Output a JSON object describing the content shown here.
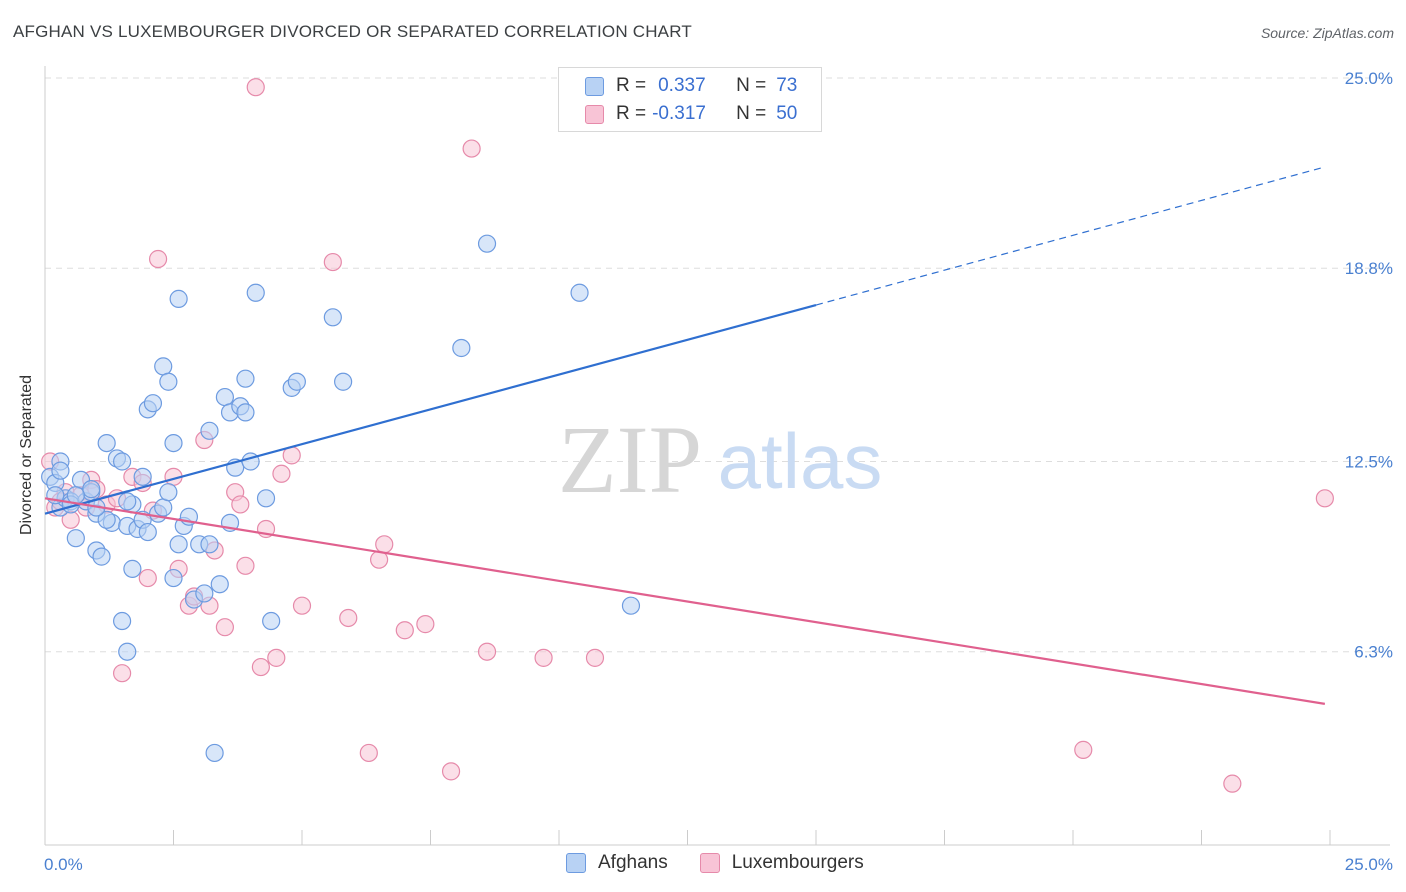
{
  "header": {
    "title": "AFGHAN VS LUXEMBOURGER DIVORCED OR SEPARATED CORRELATION CHART",
    "source": "Source: ZipAtlas.com"
  },
  "watermark": {
    "zip": "ZIP",
    "atlas": "atlas"
  },
  "legend": {
    "rows": [
      {
        "r_label": "R =",
        "r_value": "0.337",
        "n_label": "N =",
        "n_value": "73"
      },
      {
        "r_label": "R =",
        "r_value": "-0.317",
        "n_label": "N =",
        "n_value": "50"
      }
    ]
  },
  "colors": {
    "afghans_fill": "#b8d2f4",
    "afghans_stroke": "#6d9be0",
    "afghans_line": "#2f6fd0",
    "lux_fill": "#f8c4d6",
    "lux_stroke": "#e68aaa",
    "lux_line": "#e0608e",
    "axis_text": "#4a80d0",
    "grid": "#dddddd"
  },
  "chart_data": {
    "type": "scatter",
    "title": "AFGHAN VS LUXEMBOURGER DIVORCED OR SEPARATED CORRELATION CHART",
    "xlabel": "",
    "ylabel": "Divorced or Separated",
    "xlim": [
      0,
      25
    ],
    "ylim": [
      0,
      25
    ],
    "x_tick_labels": [
      "0.0%",
      "25.0%"
    ],
    "y_ticks": [
      6.3,
      12.5,
      18.8,
      25.0
    ],
    "y_tick_labels": [
      "6.3%",
      "12.5%",
      "18.8%",
      "25.0%"
    ],
    "grid": true,
    "legend_position": "bottom-center",
    "series": [
      {
        "name": "Afghans",
        "r": 0.337,
        "n": 73,
        "trend": {
          "x_start": 0,
          "y_start": 10.8,
          "x_solid_end": 15.0,
          "y_solid_end": 17.6,
          "x_end": 24.9,
          "y_end": 22.1
        },
        "points": [
          [
            0.1,
            12.0
          ],
          [
            0.2,
            11.8
          ],
          [
            0.3,
            12.5
          ],
          [
            0.3,
            11.0
          ],
          [
            0.4,
            11.3
          ],
          [
            0.5,
            11.2
          ],
          [
            0.6,
            10.0
          ],
          [
            0.7,
            11.9
          ],
          [
            0.8,
            11.2
          ],
          [
            0.9,
            11.5
          ],
          [
            1.0,
            10.8
          ],
          [
            1.0,
            9.6
          ],
          [
            1.1,
            9.4
          ],
          [
            1.2,
            13.1
          ],
          [
            1.3,
            10.5
          ],
          [
            1.4,
            12.6
          ],
          [
            1.5,
            12.5
          ],
          [
            1.5,
            7.3
          ],
          [
            1.6,
            6.3
          ],
          [
            1.6,
            10.4
          ],
          [
            1.7,
            9.0
          ],
          [
            1.7,
            11.1
          ],
          [
            1.8,
            10.3
          ],
          [
            1.9,
            12.0
          ],
          [
            1.9,
            10.6
          ],
          [
            2.0,
            14.2
          ],
          [
            2.1,
            14.4
          ],
          [
            2.2,
            10.8
          ],
          [
            2.3,
            11.0
          ],
          [
            2.3,
            15.6
          ],
          [
            2.4,
            15.1
          ],
          [
            2.4,
            11.5
          ],
          [
            2.5,
            13.1
          ],
          [
            2.6,
            9.8
          ],
          [
            2.7,
            10.4
          ],
          [
            2.8,
            10.7
          ],
          [
            2.9,
            8.0
          ],
          [
            3.0,
            9.8
          ],
          [
            3.1,
            8.2
          ],
          [
            3.2,
            13.5
          ],
          [
            3.3,
            3.0
          ],
          [
            3.4,
            8.5
          ],
          [
            3.5,
            14.6
          ],
          [
            3.6,
            14.1
          ],
          [
            3.7,
            12.3
          ],
          [
            3.8,
            14.3
          ],
          [
            3.9,
            14.1
          ],
          [
            3.9,
            15.2
          ],
          [
            4.0,
            12.5
          ],
          [
            4.1,
            18.0
          ],
          [
            4.3,
            11.3
          ],
          [
            4.4,
            7.3
          ],
          [
            4.8,
            14.9
          ],
          [
            4.9,
            15.1
          ],
          [
            5.6,
            17.2
          ],
          [
            5.8,
            15.1
          ],
          [
            8.1,
            16.2
          ],
          [
            8.6,
            19.6
          ],
          [
            10.4,
            18.0
          ],
          [
            11.4,
            7.8
          ],
          [
            2.6,
            17.8
          ],
          [
            0.2,
            11.4
          ],
          [
            0.5,
            11.1
          ],
          [
            0.9,
            11.6
          ],
          [
            1.2,
            10.6
          ],
          [
            1.6,
            11.2
          ],
          [
            2.0,
            10.2
          ],
          [
            2.5,
            8.7
          ],
          [
            3.2,
            9.8
          ],
          [
            3.6,
            10.5
          ],
          [
            0.3,
            12.2
          ],
          [
            0.6,
            11.4
          ],
          [
            1.0,
            11.0
          ]
        ]
      },
      {
        "name": "Luxembourgers",
        "r": -0.317,
        "n": 50,
        "trend": {
          "x_start": 0,
          "y_start": 11.3,
          "x_end": 24.9,
          "y_end": 4.6
        },
        "points": [
          [
            0.1,
            12.5
          ],
          [
            0.2,
            11.0
          ],
          [
            0.4,
            11.5
          ],
          [
            0.5,
            10.6
          ],
          [
            0.7,
            11.4
          ],
          [
            0.9,
            11.9
          ],
          [
            1.0,
            11.6
          ],
          [
            1.2,
            11.1
          ],
          [
            1.4,
            11.3
          ],
          [
            1.5,
            5.6
          ],
          [
            1.7,
            12.0
          ],
          [
            1.9,
            11.8
          ],
          [
            2.0,
            8.7
          ],
          [
            2.1,
            10.9
          ],
          [
            2.2,
            19.1
          ],
          [
            2.5,
            12.0
          ],
          [
            2.6,
            9.0
          ],
          [
            2.8,
            7.8
          ],
          [
            2.9,
            8.1
          ],
          [
            3.1,
            13.2
          ],
          [
            3.2,
            7.8
          ],
          [
            3.3,
            9.6
          ],
          [
            3.5,
            7.1
          ],
          [
            3.7,
            11.5
          ],
          [
            3.8,
            11.1
          ],
          [
            3.9,
            9.1
          ],
          [
            4.1,
            24.7
          ],
          [
            4.2,
            5.8
          ],
          [
            4.3,
            10.3
          ],
          [
            4.5,
            6.1
          ],
          [
            4.6,
            12.1
          ],
          [
            4.8,
            12.7
          ],
          [
            5.0,
            7.8
          ],
          [
            5.6,
            19.0
          ],
          [
            5.9,
            7.4
          ],
          [
            6.3,
            3.0
          ],
          [
            6.5,
            9.3
          ],
          [
            6.6,
            9.8
          ],
          [
            7.0,
            7.0
          ],
          [
            7.4,
            7.2
          ],
          [
            7.9,
            2.4
          ],
          [
            8.3,
            22.7
          ],
          [
            8.6,
            6.3
          ],
          [
            9.7,
            6.1
          ],
          [
            10.7,
            6.1
          ],
          [
            20.2,
            3.1
          ],
          [
            23.1,
            2.0
          ],
          [
            24.9,
            11.3
          ],
          [
            0.3,
            11.2
          ],
          [
            0.8,
            11.0
          ]
        ]
      }
    ]
  },
  "bottom_legend": {
    "items": [
      "Afghans",
      "Luxembourgers"
    ]
  }
}
